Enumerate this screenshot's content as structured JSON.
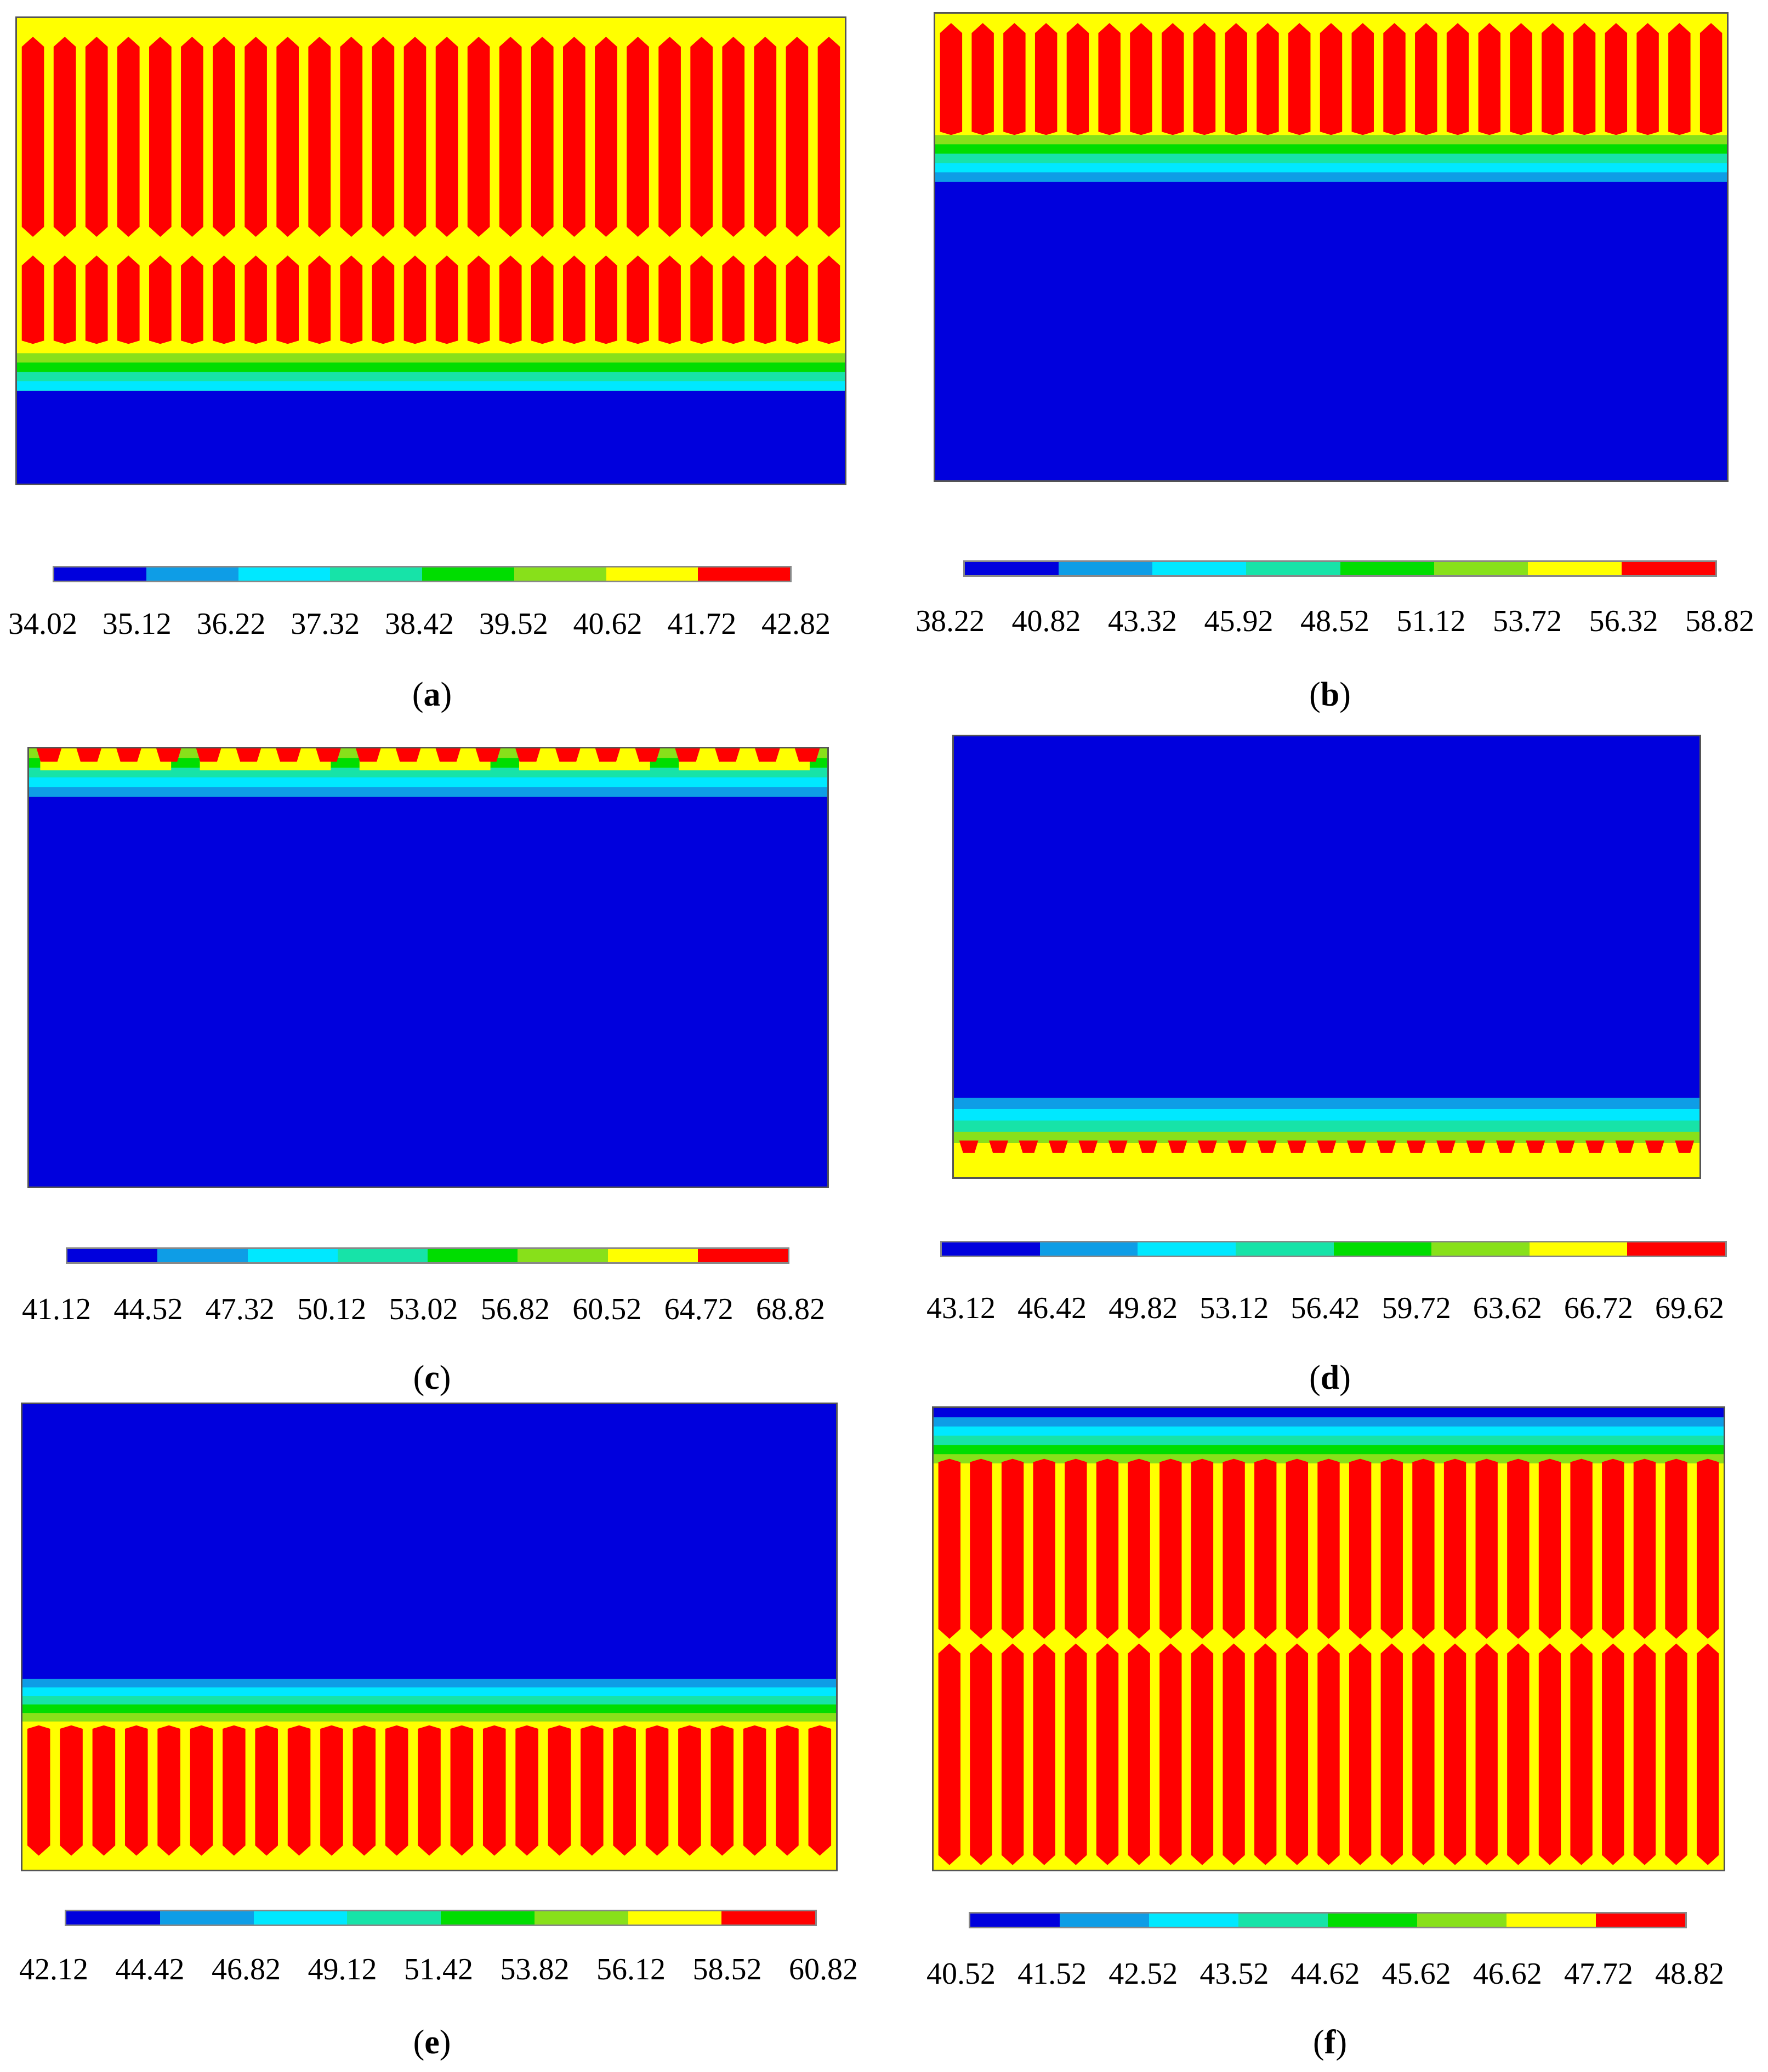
{
  "palette": [
    "#0000dd",
    "#0e9de6",
    "#00e8ff",
    "#17e3a8",
    "#00dd00",
    "#88e01a",
    "#ffff00",
    "#ff0000"
  ],
  "panels": [
    {
      "label": "a",
      "ticks": [
        "34.02",
        "35.12",
        "36.22",
        "37.32",
        "38.42",
        "39.52",
        "40.62",
        "41.72",
        "42.82"
      ],
      "hot_region": "top-two-rows",
      "columns": 26
    },
    {
      "label": "b",
      "ticks": [
        "38.22",
        "40.82",
        "43.32",
        "45.92",
        "48.52",
        "51.12",
        "53.72",
        "56.32",
        "58.82"
      ],
      "hot_region": "top-band",
      "columns": 25
    },
    {
      "label": "c",
      "ticks": [
        "41.12",
        "44.52",
        "47.32",
        "50.12",
        "53.02",
        "56.82",
        "60.52",
        "64.72",
        "68.82"
      ],
      "hot_region": "top-thin-strip",
      "columns": 20
    },
    {
      "label": "d",
      "ticks": [
        "43.12",
        "46.42",
        "49.82",
        "53.12",
        "56.42",
        "59.72",
        "63.62",
        "66.72",
        "69.62"
      ],
      "hot_region": "bottom-thin-strip",
      "columns": 25
    },
    {
      "label": "e",
      "ticks": [
        "42.12",
        "44.42",
        "46.82",
        "49.12",
        "51.42",
        "53.82",
        "56.12",
        "58.52",
        "60.82"
      ],
      "hot_region": "bottom-band",
      "columns": 25
    },
    {
      "label": "f",
      "ticks": [
        "40.52",
        "41.52",
        "42.52",
        "43.52",
        "44.62",
        "45.62",
        "46.62",
        "47.72",
        "48.82"
      ],
      "hot_region": "full-with-split",
      "columns": 25
    }
  ],
  "chart_data": {
    "type": "heatmap",
    "panel_count": 6
  }
}
